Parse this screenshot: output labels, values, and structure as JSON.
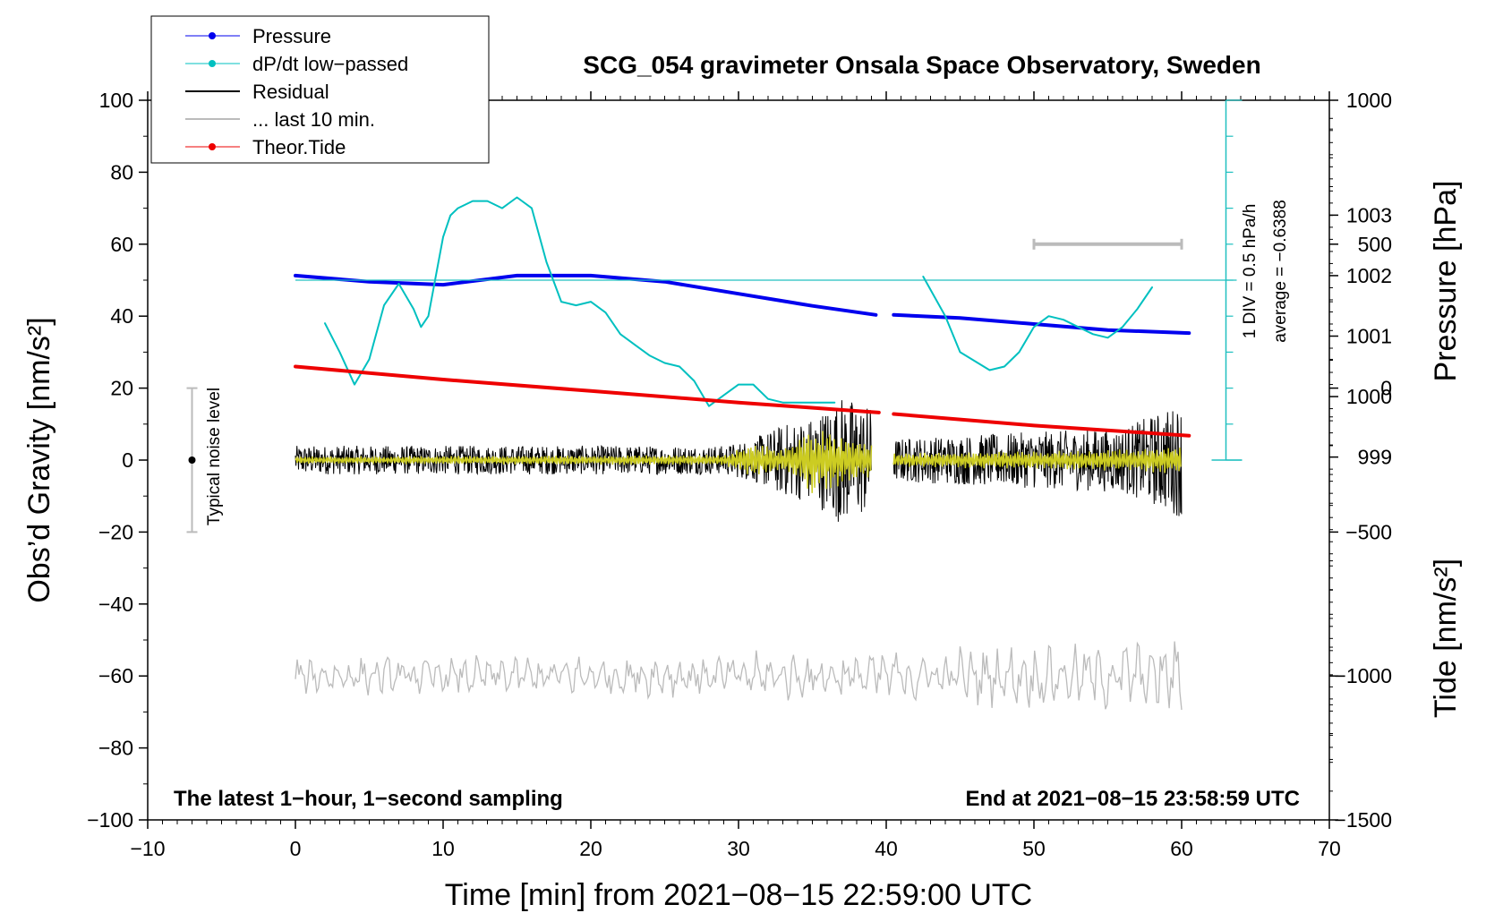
{
  "chart_data": {
    "type": "line",
    "title": "SCG_054 gravimeter Onsala Space Observatory, Sweden",
    "xlabel": "Time [min] from 2021−08−15 22:59:00 UTC",
    "ylabel_left": "Obs’d Gravity [nm/s²]",
    "ylabel_pressure": "Pressure [hPa]",
    "ylabel_tide": "Tide [nm/s²]",
    "xlim": [
      -10,
      70
    ],
    "ylim": [
      -100,
      100
    ],
    "pressure_lim": [
      993,
      1004.9
    ],
    "tide_lim": [
      -1500,
      1000
    ],
    "grid": false,
    "x_ticks": [
      -10,
      0,
      10,
      20,
      30,
      40,
      50,
      60,
      70
    ],
    "x_tick_labels": [
      "−10",
      "0",
      "10",
      "20",
      "30",
      "40",
      "50",
      "60",
      "70"
    ],
    "y_ticks": [
      -100,
      -80,
      -60,
      -40,
      -20,
      0,
      20,
      40,
      60,
      80,
      100
    ],
    "y_tick_labels": [
      "−100",
      "−80",
      "−60",
      "−40",
      "−20",
      "0",
      "20",
      "40",
      "60",
      "80",
      "100"
    ],
    "pressure_ticks": [
      999,
      1000,
      1001,
      1002,
      1003
    ],
    "pressure_tick_labels": [
      "999",
      "1000",
      "1001",
      "1002",
      "1003"
    ],
    "tide_ticks": [
      -1500,
      -1000,
      -500,
      0,
      500,
      1000
    ],
    "tide_tick_labels": [
      "−1500",
      "−1000",
      "−500",
      "0",
      "500",
      "1000"
    ],
    "legend": {
      "position": "top-left",
      "entries": [
        {
          "label": "Pressure",
          "color": "#0000ee",
          "marker": true
        },
        {
          "label": "dP/dt low−passed",
          "color": "#00c0c0",
          "marker": true
        },
        {
          "label": "Residual",
          "color": "#000000",
          "marker": false
        },
        {
          "label": "... last 10 min.",
          "color": "#bbbbbb",
          "marker": false
        },
        {
          "label": "Theor.Tide",
          "color": "#ee0000",
          "marker": true
        }
      ]
    },
    "series": [
      {
        "name": "Pressure",
        "axis": "pressure",
        "color": "#0000ee",
        "x": [
          0,
          5,
          10,
          15,
          20,
          25,
          30,
          35,
          39.3,
          null,
          40.5,
          45,
          50,
          55,
          60.5
        ],
        "values": [
          1002.0,
          1001.9,
          1001.85,
          1002.0,
          1002.0,
          1001.9,
          1001.7,
          1001.5,
          1001.35,
          null,
          1001.35,
          1001.3,
          1001.2,
          1001.1,
          1001.05
        ]
      },
      {
        "name": "dP/dt low−passed",
        "axis": "gravity",
        "color": "#00c0c0",
        "x": [
          2,
          3,
          4,
          5,
          6,
          7,
          8,
          8.5,
          9,
          10,
          10.5,
          11,
          12,
          13,
          14,
          15,
          16,
          17,
          18,
          19,
          20,
          21,
          22,
          23,
          24,
          25,
          26,
          27,
          28,
          29,
          30,
          31,
          32,
          33,
          34,
          35,
          36.5,
          null,
          42.5,
          44,
          45,
          47,
          48,
          49,
          50,
          51,
          52,
          53,
          54,
          55,
          56,
          57,
          58
        ],
        "values": [
          38,
          30,
          21,
          28,
          43,
          49,
          42,
          37,
          40,
          62,
          68,
          70,
          72,
          72,
          70,
          73,
          70,
          55,
          44,
          43,
          44,
          41,
          35,
          32,
          29,
          27,
          26,
          22,
          15,
          18,
          21,
          21,
          17,
          16,
          16,
          16,
          16,
          null,
          51,
          40,
          30,
          25,
          26,
          30,
          37,
          40,
          39,
          37,
          35,
          34,
          37,
          42,
          48
        ]
      },
      {
        "name": "Residual",
        "axis": "gravity",
        "color": "#000000",
        "x": [
          0,
          29,
          31,
          33,
          35,
          37,
          39,
          null,
          40.5,
          56,
          60
        ],
        "values": [
          0,
          0,
          0,
          0,
          0,
          0,
          0,
          null,
          0,
          0,
          0
        ],
        "envelope": [
          4,
          4,
          6,
          10,
          12,
          18,
          15,
          null,
          6,
          9,
          16
        ]
      },
      {
        "name": "Residual (low-passed)",
        "axis": "gravity",
        "color": "#cccc22",
        "x": [
          0,
          29,
          31,
          33,
          35,
          37,
          39,
          null,
          40.5,
          56,
          60
        ],
        "values": [
          0,
          0,
          0,
          0,
          0,
          0,
          0,
          null,
          0,
          0,
          0
        ],
        "envelope": [
          1,
          1.5,
          5,
          3,
          10,
          7,
          5,
          null,
          2,
          3,
          4
        ]
      },
      {
        "name": "... last 10 min.",
        "axis": "gravity",
        "color": "#bbbbbb",
        "x_range": [
          0,
          60
        ],
        "center": -60,
        "amplitude": [
          4,
          8
        ]
      },
      {
        "name": "Theor.Tide",
        "axis": "tide",
        "color": "#ee0000",
        "x": [
          0,
          10,
          20,
          30,
          39.5,
          null,
          40.5,
          50,
          60.5
        ],
        "values": [
          75,
          30,
          -10,
          -50,
          -85,
          null,
          -90,
          -130,
          -165
        ]
      }
    ],
    "noise_bar": {
      "x": -7,
      "y_low": -20,
      "y_high": 20,
      "y_mid": 0,
      "label": "Typical noise level"
    },
    "ten_min_bar": {
      "x_start": 50,
      "x_end": 60,
      "tide_y": 500
    },
    "dpdt_scale": {
      "label1": "1 DIV = 0.5 hPa/h",
      "label2": "average = −0.6388",
      "baseline": 50,
      "x": 63,
      "bottom": 0,
      "top": 100
    },
    "annotation_left": "The latest 1−hour, 1−second sampling",
    "annotation_right": "End at 2021−08−15 23:58:59 UTC"
  }
}
